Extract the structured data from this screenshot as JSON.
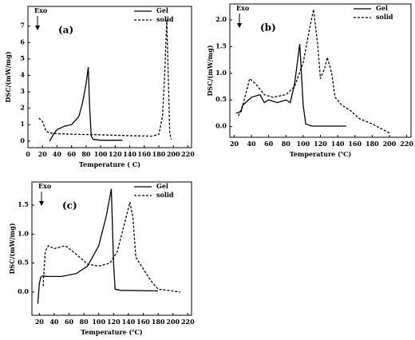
{
  "chart_data": [
    {
      "type": "line",
      "panel_label": "(a)",
      "exo_label": "Exo",
      "ylabel": "DSC/(mW/mg)",
      "xlabel": "Temperature ( C)",
      "xlim": [
        0,
        225
      ],
      "ylim": [
        -0.4,
        8.2
      ],
      "xticks": [
        0,
        20,
        40,
        60,
        80,
        100,
        120,
        140,
        160,
        180,
        200,
        220
      ],
      "yticks": [
        0,
        1,
        2,
        3,
        4,
        5,
        6,
        7
      ],
      "series": [
        {
          "name": "Gel",
          "color": "#000000",
          "dashed": false,
          "x": [
            30,
            35,
            40,
            50,
            60,
            70,
            75,
            80,
            83,
            85,
            87,
            90,
            100,
            130
          ],
          "values": [
            0,
            0.4,
            0.7,
            0.9,
            1.0,
            1.5,
            2.3,
            3.5,
            4.5,
            2.0,
            0.3,
            0.1,
            0.05,
            0.05
          ]
        },
        {
          "name": "solid",
          "color": "#000000",
          "dashed": true,
          "x": [
            15,
            20,
            25,
            30,
            40,
            60,
            100,
            140,
            170,
            180,
            185,
            188,
            191,
            193,
            195,
            197
          ],
          "values": [
            1.4,
            1.2,
            0.6,
            0.5,
            0.45,
            0.42,
            0.38,
            0.33,
            0.3,
            0.4,
            1.5,
            4.0,
            7.4,
            4.0,
            0.5,
            0.1
          ]
        }
      ]
    },
    {
      "type": "line",
      "panel_label": "(b)",
      "exo_label": "Exo",
      "ylabel": "DSC/(mW/mg)",
      "xlabel": "Temperature (℃)",
      "xlim": [
        15,
        225
      ],
      "ylim": [
        -0.2,
        2.3
      ],
      "xticks": [
        20,
        40,
        60,
        80,
        100,
        120,
        140,
        160,
        180,
        200,
        220
      ],
      "yticks": [
        {
          "value": 0,
          "label": "0.0"
        },
        0.5,
        {
          "value": 1,
          "label": "1.0"
        },
        1.5,
        {
          "value": 2,
          "label": "2.0"
        }
      ],
      "series": [
        {
          "name": "Gel",
          "color": "#000000",
          "dashed": false,
          "x": [
            22,
            28,
            30,
            40,
            50,
            55,
            60,
            70,
            80,
            85,
            90,
            96,
            100,
            103,
            110,
            150
          ],
          "values": [
            0.25,
            0.28,
            0.4,
            0.55,
            0.6,
            0.45,
            0.5,
            0.45,
            0.5,
            0.45,
            0.8,
            1.55,
            0.4,
            0.05,
            0.01,
            0.01
          ]
        },
        {
          "name": "solid",
          "color": "#000000",
          "dashed": true,
          "x": [
            25,
            30,
            38,
            45,
            55,
            65,
            80,
            90,
            100,
            107,
            112,
            117,
            120,
            125,
            128,
            133,
            137,
            145,
            155,
            165,
            180,
            200
          ],
          "values": [
            0.2,
            0.4,
            0.9,
            0.8,
            0.6,
            0.55,
            0.6,
            0.75,
            1.2,
            1.8,
            2.2,
            1.5,
            0.9,
            1.1,
            1.3,
            1.0,
            0.55,
            0.4,
            0.3,
            0.15,
            0.05,
            -0.12
          ]
        }
      ]
    },
    {
      "type": "line",
      "panel_label": "(c)",
      "exo_label": "Exo",
      "ylabel": "DSC/(mW/mg)",
      "xlabel": "Temperature (℃)",
      "xlim": [
        10,
        225
      ],
      "ylim": [
        -0.4,
        1.9
      ],
      "xticks": [
        20,
        40,
        60,
        80,
        100,
        120,
        140,
        160,
        180,
        200,
        220
      ],
      "yticks": [
        {
          "value": 0,
          "label": "0.0"
        },
        0.5,
        {
          "value": 1,
          "label": "1.0"
        },
        1.5
      ],
      "series": [
        {
          "name": "Gel",
          "color": "#000000",
          "dashed": false,
          "x": [
            18,
            20,
            22,
            25,
            30,
            50,
            70,
            85,
            100,
            110,
            117,
            120,
            122,
            130,
            180
          ],
          "values": [
            -0.2,
            0.15,
            0.26,
            0.28,
            0.27,
            0.27,
            0.32,
            0.45,
            0.8,
            1.3,
            1.78,
            0.5,
            0.05,
            0.03,
            0.02
          ]
        },
        {
          "name": "solid",
          "color": "#000000",
          "dashed": true,
          "x": [
            25,
            28,
            32,
            40,
            55,
            70,
            85,
            100,
            115,
            125,
            135,
            142,
            146,
            150,
            160,
            170,
            180,
            200,
            210
          ],
          "values": [
            0.1,
            0.7,
            0.8,
            0.75,
            0.8,
            0.65,
            0.48,
            0.45,
            0.5,
            0.7,
            1.2,
            1.55,
            1.3,
            0.6,
            0.4,
            0.2,
            0.05,
            0.02,
            0
          ]
        }
      ]
    }
  ]
}
